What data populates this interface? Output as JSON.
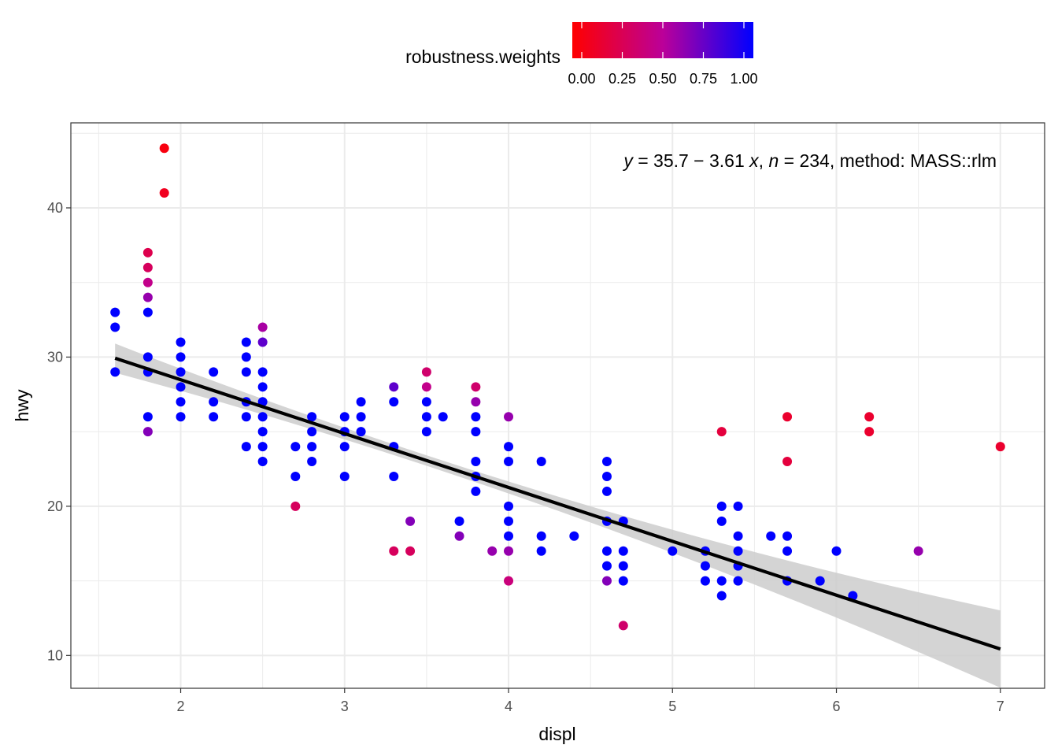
{
  "chart_data": {
    "type": "scatter",
    "xlabel": "displ",
    "ylabel": "hwy",
    "xlim": [
      1.33,
      7.27
    ],
    "ylim": [
      7.8,
      45.7
    ],
    "x_ticks": [
      2,
      3,
      4,
      5,
      6,
      7
    ],
    "y_ticks": [
      10,
      20,
      30,
      40
    ],
    "grid": true,
    "legend": {
      "title": "robustness.weights",
      "position": "top",
      "ticks": [
        "0.00",
        "0.25",
        "0.50",
        "0.75",
        "1.00"
      ],
      "low_color": "#ff0000",
      "high_color": "#0000ff"
    },
    "annotation": {
      "y_var": "y",
      "eq_part1": " = 35.7 − 3.61 ",
      "x_var": "x",
      "sep": ", ",
      "n_var": "n",
      "eq_part2": " = 234, method: MASS::rlm"
    },
    "fit": {
      "intercept": 35.7,
      "slope": -3.61,
      "x_range": [
        1.6,
        7.0
      ],
      "band_color": "#cccccc",
      "line_color": "#000000"
    },
    "points": [
      {
        "x": 1.9,
        "y": 44,
        "w": 0.05
      },
      {
        "x": 1.9,
        "y": 41,
        "w": 0.1
      },
      {
        "x": 1.8,
        "y": 37,
        "w": 0.25
      },
      {
        "x": 1.8,
        "y": 36,
        "w": 0.3
      },
      {
        "x": 1.8,
        "y": 35,
        "w": 0.45
      },
      {
        "x": 1.8,
        "y": 34,
        "w": 0.6
      },
      {
        "x": 1.8,
        "y": 33,
        "w": 1
      },
      {
        "x": 1.8,
        "y": 30,
        "w": 1
      },
      {
        "x": 1.8,
        "y": 29,
        "w": 1
      },
      {
        "x": 1.8,
        "y": 26,
        "w": 1
      },
      {
        "x": 1.8,
        "y": 25,
        "w": 0.65
      },
      {
        "x": 1.6,
        "y": 33,
        "w": 1
      },
      {
        "x": 1.6,
        "y": 32,
        "w": 1
      },
      {
        "x": 1.6,
        "y": 29,
        "w": 1
      },
      {
        "x": 2.0,
        "y": 31,
        "w": 1
      },
      {
        "x": 2.0,
        "y": 30,
        "w": 1
      },
      {
        "x": 2.0,
        "y": 29,
        "w": 1
      },
      {
        "x": 2.0,
        "y": 28,
        "w": 1
      },
      {
        "x": 2.0,
        "y": 27,
        "w": 1
      },
      {
        "x": 2.0,
        "y": 26,
        "w": 1
      },
      {
        "x": 2.2,
        "y": 29,
        "w": 1
      },
      {
        "x": 2.2,
        "y": 27,
        "w": 1
      },
      {
        "x": 2.2,
        "y": 26,
        "w": 1
      },
      {
        "x": 2.4,
        "y": 31,
        "w": 1
      },
      {
        "x": 2.4,
        "y": 30,
        "w": 1
      },
      {
        "x": 2.4,
        "y": 29,
        "w": 1
      },
      {
        "x": 2.4,
        "y": 27,
        "w": 1
      },
      {
        "x": 2.4,
        "y": 26,
        "w": 1
      },
      {
        "x": 2.4,
        "y": 24,
        "w": 1
      },
      {
        "x": 2.5,
        "y": 32,
        "w": 0.55
      },
      {
        "x": 2.5,
        "y": 31,
        "w": 0.75
      },
      {
        "x": 2.5,
        "y": 29,
        "w": 1
      },
      {
        "x": 2.5,
        "y": 28,
        "w": 1
      },
      {
        "x": 2.5,
        "y": 27,
        "w": 1
      },
      {
        "x": 2.5,
        "y": 26,
        "w": 1
      },
      {
        "x": 2.5,
        "y": 25,
        "w": 1
      },
      {
        "x": 2.5,
        "y": 24,
        "w": 1
      },
      {
        "x": 2.5,
        "y": 23,
        "w": 1
      },
      {
        "x": 2.7,
        "y": 24,
        "w": 1
      },
      {
        "x": 2.7,
        "y": 22,
        "w": 1
      },
      {
        "x": 2.7,
        "y": 20,
        "w": 0.3
      },
      {
        "x": 2.8,
        "y": 26,
        "w": 1
      },
      {
        "x": 2.8,
        "y": 25,
        "w": 1
      },
      {
        "x": 2.8,
        "y": 24,
        "w": 1
      },
      {
        "x": 2.8,
        "y": 23,
        "w": 1
      },
      {
        "x": 3.0,
        "y": 26,
        "w": 1
      },
      {
        "x": 3.0,
        "y": 25,
        "w": 1
      },
      {
        "x": 3.0,
        "y": 24,
        "w": 1
      },
      {
        "x": 3.0,
        "y": 22,
        "w": 1
      },
      {
        "x": 3.1,
        "y": 27,
        "w": 1
      },
      {
        "x": 3.1,
        "y": 26,
        "w": 1
      },
      {
        "x": 3.1,
        "y": 25,
        "w": 1
      },
      {
        "x": 3.3,
        "y": 28,
        "w": 0.75
      },
      {
        "x": 3.3,
        "y": 27,
        "w": 1
      },
      {
        "x": 3.3,
        "y": 24,
        "w": 1
      },
      {
        "x": 3.3,
        "y": 22,
        "w": 1
      },
      {
        "x": 3.3,
        "y": 17,
        "w": 0.3
      },
      {
        "x": 3.4,
        "y": 19,
        "w": 0.65
      },
      {
        "x": 3.4,
        "y": 17,
        "w": 0.3
      },
      {
        "x": 3.5,
        "y": 29,
        "w": 0.35
      },
      {
        "x": 3.5,
        "y": 28,
        "w": 0.45
      },
      {
        "x": 3.5,
        "y": 27,
        "w": 1
      },
      {
        "x": 3.5,
        "y": 26,
        "w": 1
      },
      {
        "x": 3.5,
        "y": 25,
        "w": 1
      },
      {
        "x": 3.6,
        "y": 26,
        "w": 1
      },
      {
        "x": 3.7,
        "y": 19,
        "w": 1
      },
      {
        "x": 3.7,
        "y": 18,
        "w": 0.65
      },
      {
        "x": 3.8,
        "y": 28,
        "w": 0.35
      },
      {
        "x": 3.8,
        "y": 27,
        "w": 0.6
      },
      {
        "x": 3.8,
        "y": 26,
        "w": 1
      },
      {
        "x": 3.8,
        "y": 25,
        "w": 1
      },
      {
        "x": 3.8,
        "y": 23,
        "w": 1
      },
      {
        "x": 3.8,
        "y": 22,
        "w": 1
      },
      {
        "x": 3.8,
        "y": 21,
        "w": 1
      },
      {
        "x": 3.9,
        "y": 17,
        "w": 0.6
      },
      {
        "x": 4.0,
        "y": 26,
        "w": 0.6
      },
      {
        "x": 4.0,
        "y": 24,
        "w": 1
      },
      {
        "x": 4.0,
        "y": 23,
        "w": 1
      },
      {
        "x": 4.0,
        "y": 20,
        "w": 1
      },
      {
        "x": 4.0,
        "y": 19,
        "w": 1
      },
      {
        "x": 4.0,
        "y": 18,
        "w": 1
      },
      {
        "x": 4.0,
        "y": 17,
        "w": 0.6
      },
      {
        "x": 4.0,
        "y": 15,
        "w": 0.4
      },
      {
        "x": 4.2,
        "y": 23,
        "w": 1
      },
      {
        "x": 4.2,
        "y": 18,
        "w": 1
      },
      {
        "x": 4.2,
        "y": 17,
        "w": 1
      },
      {
        "x": 4.4,
        "y": 18,
        "w": 1
      },
      {
        "x": 4.6,
        "y": 23,
        "w": 1
      },
      {
        "x": 4.6,
        "y": 22,
        "w": 1
      },
      {
        "x": 4.6,
        "y": 21,
        "w": 1
      },
      {
        "x": 4.6,
        "y": 19,
        "w": 1
      },
      {
        "x": 4.6,
        "y": 17,
        "w": 1
      },
      {
        "x": 4.6,
        "y": 16,
        "w": 1
      },
      {
        "x": 4.6,
        "y": 15,
        "w": 0.65
      },
      {
        "x": 4.7,
        "y": 19,
        "w": 1
      },
      {
        "x": 4.7,
        "y": 17,
        "w": 1
      },
      {
        "x": 4.7,
        "y": 16,
        "w": 1
      },
      {
        "x": 4.7,
        "y": 15,
        "w": 1
      },
      {
        "x": 4.7,
        "y": 12,
        "w": 0.35
      },
      {
        "x": 5.0,
        "y": 17,
        "w": 1
      },
      {
        "x": 5.2,
        "y": 17,
        "w": 1
      },
      {
        "x": 5.2,
        "y": 16,
        "w": 1
      },
      {
        "x": 5.2,
        "y": 15,
        "w": 1
      },
      {
        "x": 5.3,
        "y": 25,
        "w": 0.2
      },
      {
        "x": 5.3,
        "y": 20,
        "w": 1
      },
      {
        "x": 5.3,
        "y": 19,
        "w": 1
      },
      {
        "x": 5.3,
        "y": 15,
        "w": 1
      },
      {
        "x": 5.3,
        "y": 14,
        "w": 1
      },
      {
        "x": 5.4,
        "y": 20,
        "w": 1
      },
      {
        "x": 5.4,
        "y": 18,
        "w": 1
      },
      {
        "x": 5.4,
        "y": 17,
        "w": 1
      },
      {
        "x": 5.4,
        "y": 16,
        "w": 1
      },
      {
        "x": 5.4,
        "y": 15,
        "w": 1
      },
      {
        "x": 5.6,
        "y": 18,
        "w": 1
      },
      {
        "x": 5.7,
        "y": 26,
        "w": 0.15
      },
      {
        "x": 5.7,
        "y": 23,
        "w": 0.2
      },
      {
        "x": 5.7,
        "y": 18,
        "w": 1
      },
      {
        "x": 5.7,
        "y": 17,
        "w": 1
      },
      {
        "x": 5.7,
        "y": 15,
        "w": 1
      },
      {
        "x": 5.9,
        "y": 15,
        "w": 1
      },
      {
        "x": 6.0,
        "y": 17,
        "w": 1
      },
      {
        "x": 6.1,
        "y": 14,
        "w": 1
      },
      {
        "x": 6.2,
        "y": 26,
        "w": 0.15
      },
      {
        "x": 6.2,
        "y": 25,
        "w": 0.15
      },
      {
        "x": 6.5,
        "y": 17,
        "w": 0.6
      },
      {
        "x": 7.0,
        "y": 24,
        "w": 0.15
      }
    ]
  }
}
